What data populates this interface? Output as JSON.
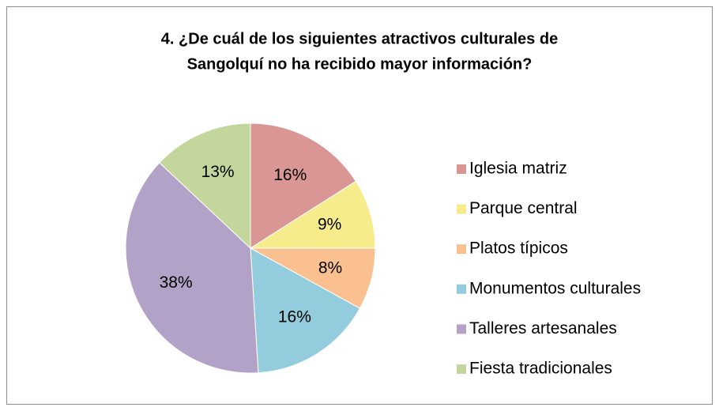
{
  "chart_data": {
    "type": "pie",
    "title": [
      "4. ¿De cuál de los siguientes atractivos culturales de",
      "Sangolquí no ha recibido mayor información?"
    ],
    "categories": [
      "Iglesia matriz",
      "Parque central",
      "Platos típicos",
      "Monumentos culturales",
      "Talleres artesanales",
      "Fiesta tradicionales"
    ],
    "values": [
      16,
      9,
      8,
      16,
      38,
      13
    ],
    "value_labels": [
      "16%",
      "9%",
      "8%",
      "16%",
      "38%",
      "13%"
    ],
    "colors": [
      "#d99694",
      "#f6ec8c",
      "#fac090",
      "#93cddd",
      "#b3a2c7",
      "#c3d69b"
    ],
    "legend": "right"
  }
}
